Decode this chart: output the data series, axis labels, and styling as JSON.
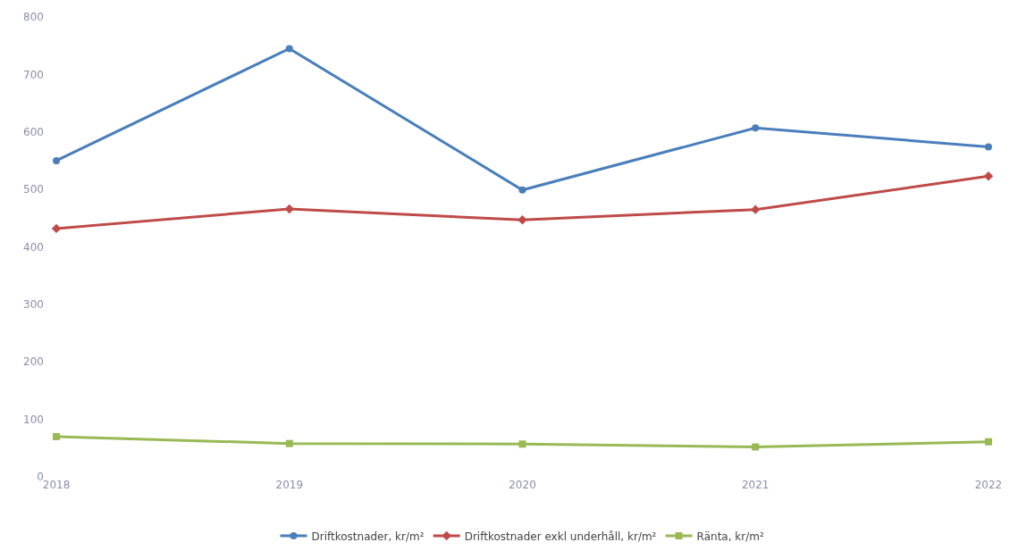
{
  "chart_data": {
    "type": "line",
    "categories": [
      "2018",
      "2019",
      "2020",
      "2021",
      "2022"
    ],
    "ylim": [
      0,
      800
    ],
    "yticks": [
      0,
      100,
      200,
      300,
      400,
      500,
      600,
      700,
      800
    ],
    "legend": "bottom",
    "series": [
      {
        "name": "Driftkostnader, kr/m²",
        "color": "#4a7ebb",
        "marker": "circle",
        "values": [
          550,
          745,
          499,
          607,
          574
        ]
      },
      {
        "name": "Driftkostnader exkl underhåll, kr/m²",
        "color": "#be4b48",
        "marker": "diamond",
        "values": [
          432,
          466,
          447,
          465,
          523
        ]
      },
      {
        "name": "Ränta, kr/m²",
        "color": "#98b954",
        "marker": "square",
        "values": [
          70,
          58,
          57,
          52,
          61
        ]
      }
    ]
  }
}
